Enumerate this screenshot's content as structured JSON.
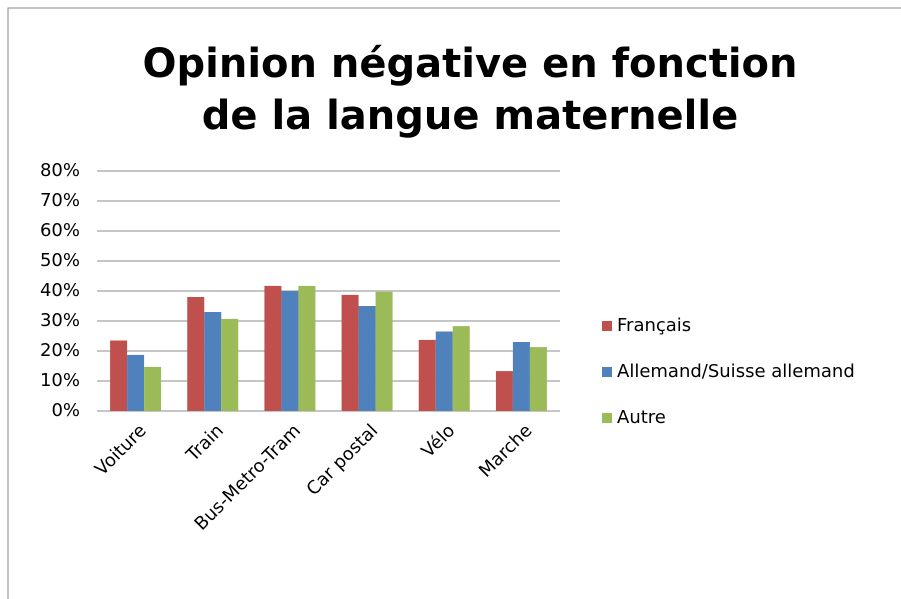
{
  "chart_data": {
    "type": "bar",
    "title": "Opinion négative en fonction de la langue maternelle",
    "categories": [
      "Voiture",
      "Train",
      "Bus-Metro-Tram",
      "Car postal",
      "Vélo",
      "Marche"
    ],
    "series": [
      {
        "name": "Français",
        "color": "#c0504d",
        "values": [
          23.5,
          38,
          41.7,
          38.7,
          23.7,
          13.3
        ]
      },
      {
        "name": "Allemand/Suisse allemand",
        "color": "#4f81bd",
        "values": [
          18.7,
          33,
          40,
          35,
          26.5,
          23
        ]
      },
      {
        "name": "Autre",
        "color": "#9bbb59",
        "values": [
          14.7,
          30.7,
          41.7,
          39.7,
          28.3,
          21.3
        ]
      }
    ],
    "ylim": [
      0,
      80
    ],
    "yticks": [
      {
        "value": 0,
        "label": "0%"
      },
      {
        "value": 10,
        "label": "10%"
      },
      {
        "value": 20,
        "label": "20%"
      },
      {
        "value": 30,
        "label": "30%"
      },
      {
        "value": 40,
        "label": "40%"
      },
      {
        "value": 50,
        "label": "50%"
      },
      {
        "value": 60,
        "label": "60%"
      },
      {
        "value": 70,
        "label": "70%"
      },
      {
        "value": 80,
        "label": "80%"
      }
    ],
    "grid": true,
    "legend": "right"
  }
}
